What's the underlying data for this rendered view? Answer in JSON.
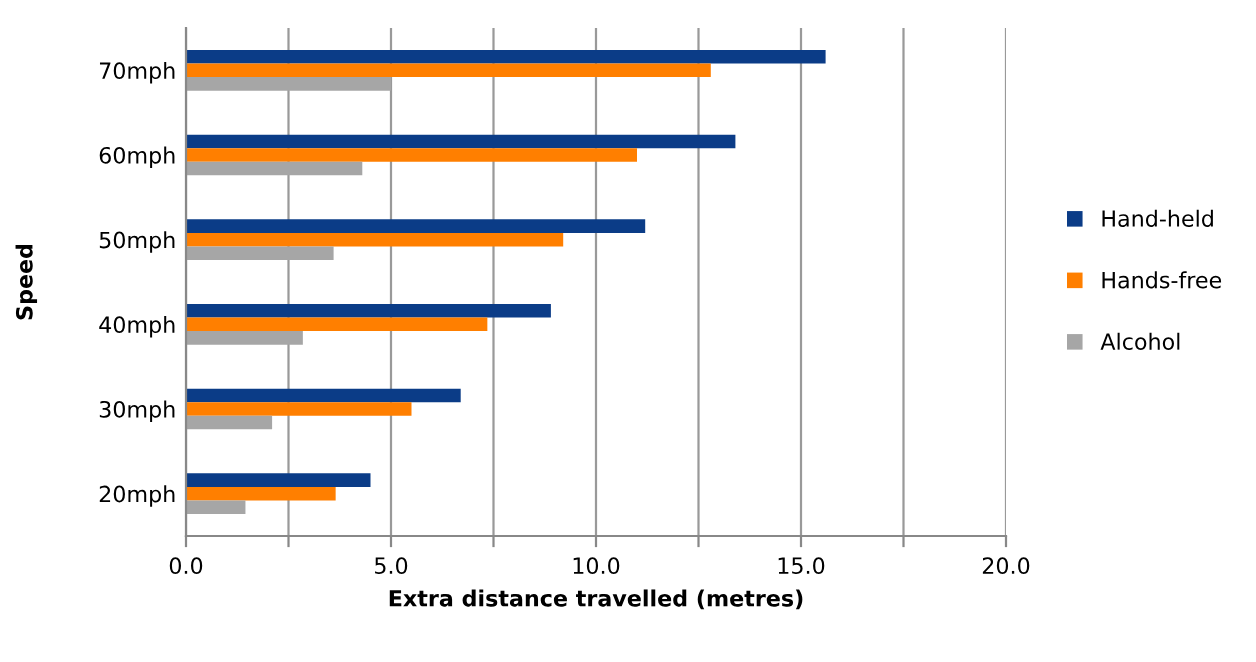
{
  "chart_data": {
    "type": "bar",
    "orientation": "horizontal",
    "xlabel": "Extra distance travelled (metres)",
    "ylabel": "Speed",
    "categories": [
      "70mph",
      "60mph",
      "50mph",
      "40mph",
      "30mph",
      "20mph"
    ],
    "series": [
      {
        "name": "Hand-held",
        "color": "#0b3c87",
        "values": [
          15.6,
          13.4,
          11.2,
          8.9,
          6.7,
          4.5
        ]
      },
      {
        "name": "Hands-free",
        "color": "#ff7f00",
        "values": [
          12.8,
          11.0,
          9.2,
          7.35,
          5.5,
          3.65
        ]
      },
      {
        "name": "Alcohol",
        "color": "#a6a6a6",
        "values": [
          5.0,
          4.3,
          3.6,
          2.85,
          2.1,
          1.45
        ]
      }
    ],
    "xlim": [
      0,
      20
    ],
    "xticks": [
      {
        "value": 0,
        "label": "0.0"
      },
      {
        "value": 2.5,
        "label": null
      },
      {
        "value": 5,
        "label": "5.0"
      },
      {
        "value": 7.5,
        "label": null
      },
      {
        "value": 10,
        "label": "10.0"
      },
      {
        "value": 12.5,
        "label": null
      },
      {
        "value": 15,
        "label": "15.0"
      },
      {
        "value": 17.5,
        "label": null
      },
      {
        "value": 20,
        "label": "20.0"
      }
    ],
    "grid": "x",
    "legend": "right"
  }
}
